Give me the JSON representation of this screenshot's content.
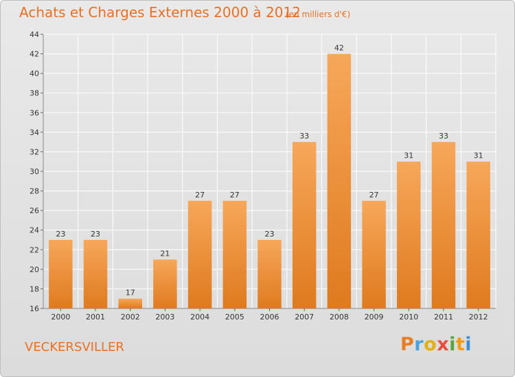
{
  "header": {
    "title": "Achats et Charges Externes 2000 à 2012",
    "unit": "(en milliers d'€)"
  },
  "footer": {
    "commune": "VECKERSVILLER",
    "logo_letters": [
      "P",
      "r",
      "o",
      "x",
      "i",
      "t",
      "i"
    ],
    "logo_colors": [
      "#e67e22",
      "#4aa3df",
      "#e2b007",
      "#e74c3c",
      "#57a639",
      "#f39c12",
      "#3d8fd1"
    ]
  },
  "colors": {
    "title": "#ea6f22",
    "bar_top": "#f7a75a",
    "bar_bottom": "#df7a1e",
    "grid": "#ffffff",
    "axis_text": "#333333"
  },
  "chart_data": {
    "type": "bar",
    "title": "Achats et Charges Externes 2000 à 2012",
    "subtitle": "(en milliers d'€)",
    "xlabel": "",
    "ylabel": "",
    "categories": [
      "2000",
      "2001",
      "2002",
      "2003",
      "2004",
      "2005",
      "2006",
      "2007",
      "2008",
      "2009",
      "2010",
      "2011",
      "2012"
    ],
    "values": [
      23,
      23,
      17,
      21,
      27,
      27,
      23,
      33,
      42,
      27,
      31,
      33,
      31
    ],
    "ylim": [
      16,
      44
    ],
    "yticks": [
      16,
      18,
      20,
      22,
      24,
      26,
      28,
      30,
      32,
      34,
      36,
      38,
      40,
      42,
      44
    ],
    "grid": true,
    "data_labels": true
  }
}
